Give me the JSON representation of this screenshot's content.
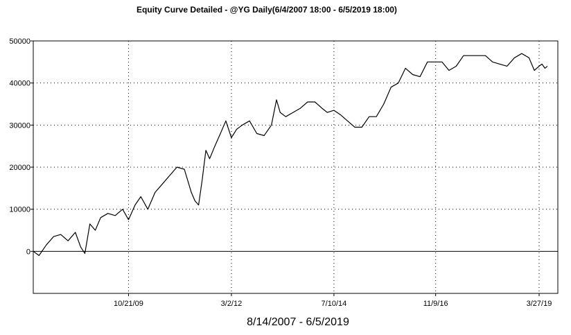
{
  "chart_data": {
    "type": "line",
    "title": "Equity Curve Detailed - @YG Daily(6/4/2007 18:00 - 6/5/2019 18:00)",
    "xlabel": "8/14/2007 - 6/5/2019",
    "ylabel": "",
    "ylim": [
      -10000,
      50000
    ],
    "xlim": [
      "2007-08-14",
      "2019-08-31"
    ],
    "grid": true,
    "yticks": [
      0,
      10000,
      20000,
      30000,
      40000,
      50000
    ],
    "ytick_labels": [
      "0",
      "10000",
      "20000",
      "30000",
      "40000",
      "50000"
    ],
    "xticks": [
      "2009-10-21",
      "2012-03-02",
      "2014-07-10",
      "2016-11-09",
      "2019-03-27"
    ],
    "xtick_labels": [
      "10/21/09",
      "3/2/12",
      "7/10/14",
      "11/9/16",
      "3/27/19"
    ],
    "series": [
      {
        "color": "#000000",
        "x": [
          "2007-08-14",
          "2007-10-01",
          "2007-12-01",
          "2008-02-01",
          "2008-04-01",
          "2008-06-01",
          "2008-08-01",
          "2008-09-15",
          "2008-10-20",
          "2008-12-01",
          "2009-01-15",
          "2009-03-01",
          "2009-05-01",
          "2009-07-01",
          "2009-09-01",
          "2009-10-21",
          "2009-12-15",
          "2010-02-01",
          "2010-04-01",
          "2010-06-01",
          "2010-08-01",
          "2010-10-01",
          "2010-12-01",
          "2011-02-01",
          "2011-04-01",
          "2011-05-01",
          "2011-06-01",
          "2011-07-01",
          "2011-08-01",
          "2011-09-01",
          "2011-10-15",
          "2011-12-01",
          "2012-01-15",
          "2012-03-02",
          "2012-04-15",
          "2012-06-01",
          "2012-08-01",
          "2012-10-01",
          "2012-12-01",
          "2013-02-01",
          "2013-03-15",
          "2013-04-15",
          "2013-06-01",
          "2013-08-01",
          "2013-10-01",
          "2013-12-01",
          "2014-02-01",
          "2014-04-01",
          "2014-05-15",
          "2014-07-10",
          "2014-09-01",
          "2014-11-01",
          "2015-01-01",
          "2015-03-01",
          "2015-05-01",
          "2015-07-01",
          "2015-09-01",
          "2015-11-01",
          "2016-01-01",
          "2016-03-01",
          "2016-05-01",
          "2016-07-01",
          "2016-09-01",
          "2016-11-09",
          "2017-01-01",
          "2017-03-01",
          "2017-05-01",
          "2017-07-01",
          "2017-09-01",
          "2017-11-01",
          "2018-01-01",
          "2018-03-01",
          "2018-05-01",
          "2018-07-01",
          "2018-09-01",
          "2018-11-01",
          "2019-01-01",
          "2019-02-15",
          "2019-03-27",
          "2019-04-20",
          "2019-05-15",
          "2019-06-05"
        ],
        "y": [
          0,
          -1000,
          1500,
          3500,
          4000,
          2500,
          4500,
          1000,
          -500,
          6500,
          5000,
          8000,
          9000,
          8500,
          10000,
          7500,
          11000,
          13000,
          10000,
          14000,
          16000,
          18000,
          20000,
          19500,
          14000,
          12000,
          11000,
          17000,
          24000,
          22000,
          25000,
          28000,
          31000,
          27000,
          29000,
          30000,
          31000,
          28000,
          27500,
          30000,
          36000,
          33000,
          32000,
          33000,
          34000,
          35500,
          35500,
          34000,
          33000,
          33500,
          32500,
          31000,
          29500,
          29500,
          32000,
          32000,
          35000,
          39000,
          40000,
          43500,
          42000,
          41500,
          45000,
          45000,
          45000,
          43000,
          44000,
          46500,
          46500,
          46500,
          46500,
          45000,
          44500,
          44000,
          46000,
          47000,
          46000,
          43000,
          44000,
          44500,
          43500,
          44000
        ]
      }
    ]
  }
}
